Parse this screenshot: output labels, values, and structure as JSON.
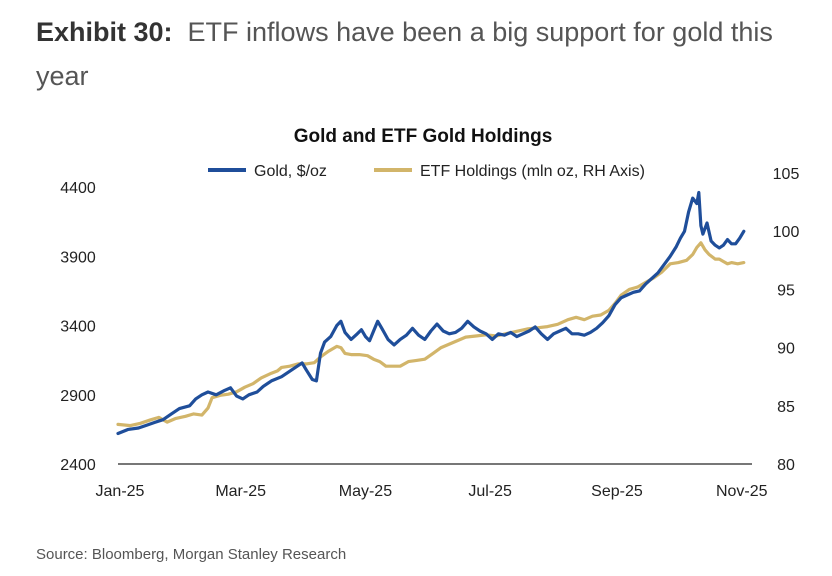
{
  "exhibit": {
    "label": "Exhibit 30:",
    "title": "ETF inflows have been a big support for gold this year"
  },
  "source": "Source: Bloomberg, Morgan Stanley Research",
  "colors": {
    "gold": "#1f4e9a",
    "etf": "#d2b56a",
    "axis": "#777777"
  },
  "chart_data": {
    "type": "line",
    "title": "Gold and ETF Gold Holdings",
    "xlabel": "",
    "ylabel": "",
    "ylim": [
      2400,
      4400
    ],
    "y2lim": [
      80,
      105
    ],
    "y_ticks": [
      2400,
      2900,
      3400,
      3900,
      4400
    ],
    "y2_ticks": [
      80,
      85,
      90,
      95,
      100,
      105
    ],
    "x_tick_labels": [
      "Jan-25",
      "Mar-25",
      "May-25",
      "Jul-25",
      "Sep-25",
      "Nov-25"
    ],
    "x_tick_days": [
      0,
      59,
      120,
      181,
      243,
      304
    ],
    "x_range_days": [
      0,
      310
    ],
    "legend_position": "top",
    "series": [
      {
        "name": "Gold, $/oz",
        "axis": "left",
        "color": "#1f4e9a",
        "points": [
          [
            0,
            2620
          ],
          [
            5,
            2650
          ],
          [
            10,
            2660
          ],
          [
            14,
            2680
          ],
          [
            18,
            2700
          ],
          [
            22,
            2720
          ],
          [
            26,
            2760
          ],
          [
            30,
            2800
          ],
          [
            35,
            2820
          ],
          [
            38,
            2870
          ],
          [
            41,
            2900
          ],
          [
            44,
            2920
          ],
          [
            48,
            2900
          ],
          [
            52,
            2930
          ],
          [
            55,
            2950
          ],
          [
            58,
            2890
          ],
          [
            61,
            2870
          ],
          [
            64,
            2900
          ],
          [
            68,
            2920
          ],
          [
            71,
            2960
          ],
          [
            75,
            3000
          ],
          [
            80,
            3030
          ],
          [
            84,
            3070
          ],
          [
            88,
            3110
          ],
          [
            90,
            3130
          ],
          [
            92,
            3080
          ],
          [
            95,
            3010
          ],
          [
            97,
            3000
          ],
          [
            99,
            3200
          ],
          [
            101,
            3280
          ],
          [
            104,
            3320
          ],
          [
            107,
            3400
          ],
          [
            109,
            3430
          ],
          [
            111,
            3350
          ],
          [
            114,
            3300
          ],
          [
            117,
            3340
          ],
          [
            119,
            3370
          ],
          [
            121,
            3320
          ],
          [
            123,
            3290
          ],
          [
            125,
            3360
          ],
          [
            127,
            3430
          ],
          [
            129,
            3380
          ],
          [
            132,
            3300
          ],
          [
            135,
            3260
          ],
          [
            138,
            3300
          ],
          [
            141,
            3330
          ],
          [
            144,
            3380
          ],
          [
            147,
            3330
          ],
          [
            150,
            3300
          ],
          [
            153,
            3360
          ],
          [
            156,
            3410
          ],
          [
            159,
            3360
          ],
          [
            162,
            3340
          ],
          [
            165,
            3350
          ],
          [
            168,
            3380
          ],
          [
            171,
            3430
          ],
          [
            174,
            3390
          ],
          [
            177,
            3360
          ],
          [
            180,
            3340
          ],
          [
            183,
            3300
          ],
          [
            186,
            3340
          ],
          [
            189,
            3330
          ],
          [
            192,
            3350
          ],
          [
            195,
            3320
          ],
          [
            198,
            3340
          ],
          [
            201,
            3360
          ],
          [
            204,
            3390
          ],
          [
            207,
            3340
          ],
          [
            210,
            3300
          ],
          [
            213,
            3340
          ],
          [
            216,
            3360
          ],
          [
            219,
            3380
          ],
          [
            222,
            3340
          ],
          [
            225,
            3340
          ],
          [
            228,
            3330
          ],
          [
            231,
            3350
          ],
          [
            234,
            3380
          ],
          [
            237,
            3420
          ],
          [
            240,
            3470
          ],
          [
            243,
            3550
          ],
          [
            246,
            3600
          ],
          [
            249,
            3620
          ],
          [
            252,
            3640
          ],
          [
            255,
            3650
          ],
          [
            258,
            3700
          ],
          [
            261,
            3740
          ],
          [
            264,
            3780
          ],
          [
            267,
            3840
          ],
          [
            270,
            3900
          ],
          [
            273,
            3970
          ],
          [
            275,
            4030
          ],
          [
            277,
            4080
          ],
          [
            279,
            4220
          ],
          [
            281,
            4320
          ],
          [
            283,
            4280
          ],
          [
            284,
            4360
          ],
          [
            285,
            4120
          ],
          [
            286,
            4060
          ],
          [
            288,
            4140
          ],
          [
            290,
            4010
          ],
          [
            292,
            3980
          ],
          [
            294,
            3960
          ],
          [
            296,
            3980
          ],
          [
            298,
            4020
          ],
          [
            300,
            3990
          ],
          [
            302,
            3990
          ],
          [
            304,
            4030
          ],
          [
            306,
            4080
          ]
        ]
      },
      {
        "name": "ETF Holdings (mln oz, RH Axis)",
        "axis": "right",
        "color": "#d2b56a",
        "points": [
          [
            0,
            83.4
          ],
          [
            6,
            83.3
          ],
          [
            11,
            83.5
          ],
          [
            16,
            83.8
          ],
          [
            20,
            84.0
          ],
          [
            24,
            83.6
          ],
          [
            28,
            83.9
          ],
          [
            33,
            84.1
          ],
          [
            37,
            84.3
          ],
          [
            41,
            84.2
          ],
          [
            44,
            84.8
          ],
          [
            46,
            85.7
          ],
          [
            50,
            85.9
          ],
          [
            54,
            86.0
          ],
          [
            58,
            86.2
          ],
          [
            62,
            86.6
          ],
          [
            66,
            86.9
          ],
          [
            70,
            87.4
          ],
          [
            75,
            87.8
          ],
          [
            78,
            88.0
          ],
          [
            80,
            88.3
          ],
          [
            84,
            88.4
          ],
          [
            88,
            88.6
          ],
          [
            92,
            88.6
          ],
          [
            96,
            88.7
          ],
          [
            99,
            89.2
          ],
          [
            103,
            89.7
          ],
          [
            107,
            90.1
          ],
          [
            109,
            90.0
          ],
          [
            111,
            89.5
          ],
          [
            114,
            89.4
          ],
          [
            118,
            89.4
          ],
          [
            122,
            89.3
          ],
          [
            125,
            89.0
          ],
          [
            128,
            88.8
          ],
          [
            131,
            88.4
          ],
          [
            134,
            88.4
          ],
          [
            138,
            88.4
          ],
          [
            142,
            88.8
          ],
          [
            146,
            88.9
          ],
          [
            150,
            89.0
          ],
          [
            154,
            89.5
          ],
          [
            158,
            90.0
          ],
          [
            162,
            90.3
          ],
          [
            166,
            90.6
          ],
          [
            170,
            90.9
          ],
          [
            175,
            91.0
          ],
          [
            180,
            91.1
          ],
          [
            185,
            91.0
          ],
          [
            190,
            91.2
          ],
          [
            195,
            91.4
          ],
          [
            200,
            91.6
          ],
          [
            205,
            91.7
          ],
          [
            210,
            91.8
          ],
          [
            215,
            92.0
          ],
          [
            220,
            92.4
          ],
          [
            224,
            92.6
          ],
          [
            228,
            92.4
          ],
          [
            232,
            92.7
          ],
          [
            236,
            92.8
          ],
          [
            240,
            93.2
          ],
          [
            243,
            93.8
          ],
          [
            246,
            94.5
          ],
          [
            250,
            95.0
          ],
          [
            254,
            95.2
          ],
          [
            258,
            95.6
          ],
          [
            262,
            96.0
          ],
          [
            266,
            96.5
          ],
          [
            270,
            97.2
          ],
          [
            274,
            97.3
          ],
          [
            278,
            97.5
          ],
          [
            281,
            98.0
          ],
          [
            283,
            98.6
          ],
          [
            285,
            99.0
          ],
          [
            287,
            98.4
          ],
          [
            289,
            98.0
          ],
          [
            292,
            97.6
          ],
          [
            294,
            97.6
          ],
          [
            296,
            97.4
          ],
          [
            298,
            97.2
          ],
          [
            300,
            97.3
          ],
          [
            303,
            97.2
          ],
          [
            306,
            97.3
          ]
        ]
      }
    ]
  }
}
